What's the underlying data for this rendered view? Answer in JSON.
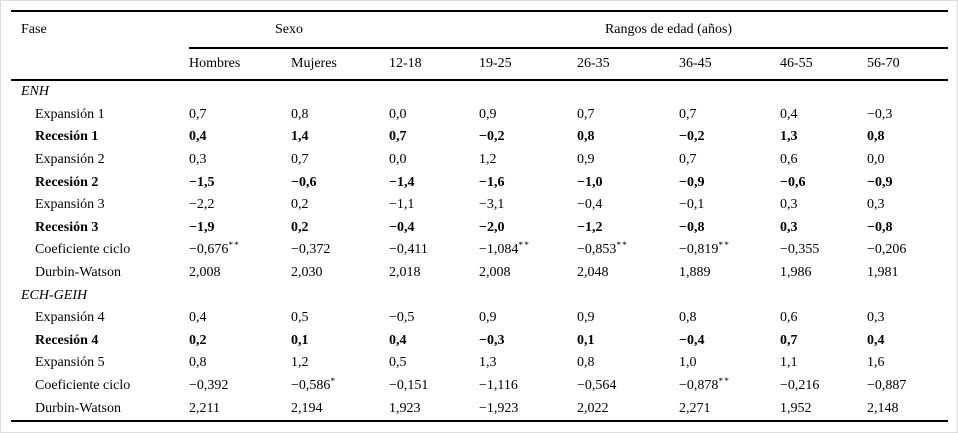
{
  "table": {
    "header": {
      "fase": "Fase",
      "sexo": "Sexo",
      "rangos": "Rangos de edad (años)"
    },
    "columns": [
      "Hombres",
      "Mujeres",
      "12-18",
      "19-25",
      "26-35",
      "36-45",
      "46-55",
      "56-70"
    ],
    "rows": [
      {
        "label": "ENH",
        "style": "section",
        "cells": []
      },
      {
        "label": "Expansión 1",
        "style": "normal",
        "cells": [
          {
            "v": "0,7"
          },
          {
            "v": "0,8"
          },
          {
            "v": "0,0"
          },
          {
            "v": "0,9"
          },
          {
            "v": "0,7"
          },
          {
            "v": "0,7"
          },
          {
            "v": "0,4"
          },
          {
            "v": "−0,3"
          }
        ]
      },
      {
        "label": "Recesión 1",
        "style": "bold",
        "cells": [
          {
            "v": "0,4"
          },
          {
            "v": "1,4"
          },
          {
            "v": "0,7"
          },
          {
            "v": "−0,2"
          },
          {
            "v": "0,8"
          },
          {
            "v": "−0,2"
          },
          {
            "v": "1,3"
          },
          {
            "v": "0,8"
          }
        ]
      },
      {
        "label": "Expansión 2",
        "style": "normal",
        "cells": [
          {
            "v": "0,3"
          },
          {
            "v": "0,7"
          },
          {
            "v": "0,0"
          },
          {
            "v": "1,2"
          },
          {
            "v": "0,9"
          },
          {
            "v": "0,7"
          },
          {
            "v": "0,6"
          },
          {
            "v": "0,0"
          }
        ]
      },
      {
        "label": "Recesión 2",
        "style": "bold",
        "cells": [
          {
            "v": "−1,5"
          },
          {
            "v": "−0,6"
          },
          {
            "v": "−1,4"
          },
          {
            "v": "−1,6"
          },
          {
            "v": "−1,0"
          },
          {
            "v": "−0,9"
          },
          {
            "v": "−0,6"
          },
          {
            "v": "−0,9"
          }
        ]
      },
      {
        "label": "Expansión 3",
        "style": "normal",
        "cells": [
          {
            "v": "−2,2"
          },
          {
            "v": "0,2"
          },
          {
            "v": "−1,1"
          },
          {
            "v": "−3,1"
          },
          {
            "v": "−0,4"
          },
          {
            "v": "−0,1"
          },
          {
            "v": "0,3"
          },
          {
            "v": "0,3"
          }
        ]
      },
      {
        "label": "Recesión 3",
        "style": "bold",
        "cells": [
          {
            "v": "−1,9"
          },
          {
            "v": "0,2"
          },
          {
            "v": "−0,4"
          },
          {
            "v": "−2,0"
          },
          {
            "v": "−1,2"
          },
          {
            "v": "−0,8"
          },
          {
            "v": "0,3"
          },
          {
            "v": "−0,8"
          }
        ]
      },
      {
        "label": "Coeficiente ciclo",
        "style": "normal",
        "cells": [
          {
            "v": "−0,676",
            "sup": "**"
          },
          {
            "v": "−0,372"
          },
          {
            "v": "−0,411"
          },
          {
            "v": "−1,084",
            "sup": "**"
          },
          {
            "v": "−0,853",
            "sup": "**"
          },
          {
            "v": "−0,819",
            "sup": "**"
          },
          {
            "v": "−0,355"
          },
          {
            "v": "−0,206"
          }
        ]
      },
      {
        "label": "Durbin-Watson",
        "style": "normal",
        "cells": [
          {
            "v": "2,008"
          },
          {
            "v": "2,030"
          },
          {
            "v": "2,018"
          },
          {
            "v": "2,008"
          },
          {
            "v": "2,048"
          },
          {
            "v": "1,889"
          },
          {
            "v": "1,986"
          },
          {
            "v": "1,981"
          }
        ]
      },
      {
        "label": "ECH-GEIH",
        "style": "section",
        "cells": []
      },
      {
        "label": "Expansión 4",
        "style": "normal",
        "cells": [
          {
            "v": "0,4"
          },
          {
            "v": "0,5"
          },
          {
            "v": "−0,5"
          },
          {
            "v": "0,9"
          },
          {
            "v": "0,9"
          },
          {
            "v": "0,8"
          },
          {
            "v": "0,6"
          },
          {
            "v": "0,3"
          }
        ]
      },
      {
        "label": "Recesión 4",
        "style": "bold",
        "cells": [
          {
            "v": "0,2"
          },
          {
            "v": "0,1"
          },
          {
            "v": "0,4"
          },
          {
            "v": "−0,3"
          },
          {
            "v": "0,1"
          },
          {
            "v": "−0,4"
          },
          {
            "v": "0,7"
          },
          {
            "v": "0,4"
          }
        ]
      },
      {
        "label": "Expansión 5",
        "style": "normal",
        "cells": [
          {
            "v": "0,8"
          },
          {
            "v": "1,2"
          },
          {
            "v": "0,5"
          },
          {
            "v": "1,3"
          },
          {
            "v": "0,8"
          },
          {
            "v": "1,0"
          },
          {
            "v": "1,1"
          },
          {
            "v": "1,6"
          }
        ]
      },
      {
        "label": "Coeficiente ciclo",
        "style": "normal",
        "cells": [
          {
            "v": "−0,392"
          },
          {
            "v": "−0,586",
            "sup": "*"
          },
          {
            "v": "−0,151"
          },
          {
            "v": "−1,116"
          },
          {
            "v": "−0,564"
          },
          {
            "v": "−0,878",
            "sup": "**"
          },
          {
            "v": "−0,216"
          },
          {
            "v": "−0,887"
          }
        ]
      },
      {
        "label": "Durbin-Watson",
        "style": "normal",
        "cells": [
          {
            "v": "2,211"
          },
          {
            "v": "2,194"
          },
          {
            "v": "1,923"
          },
          {
            "v": "−1,923"
          },
          {
            "v": "2,022"
          },
          {
            "v": "2,271"
          },
          {
            "v": "1,952"
          },
          {
            "v": "2,148"
          }
        ]
      }
    ]
  }
}
